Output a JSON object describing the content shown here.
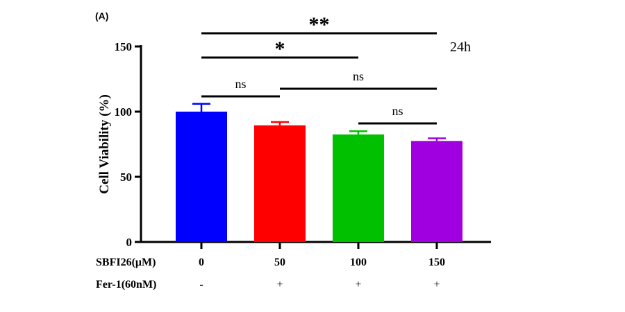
{
  "panel_label": "(A)",
  "annotation": "24h",
  "chart_data": {
    "type": "bar",
    "ylabel": "Cell Viability (%)",
    "ylim": [
      0,
      150
    ],
    "yticks": [
      "0",
      "50",
      "100",
      "150"
    ],
    "row_labels": [
      "SBFI26(μM)",
      "Fer-1(60nM)"
    ],
    "categories": [
      "0",
      "50",
      "100",
      "150"
    ],
    "fer1": [
      "-",
      "+",
      "+",
      "+"
    ],
    "values": [
      100,
      89.5,
      82.5,
      77.5
    ],
    "errors": [
      6,
      2.5,
      2.5,
      2
    ],
    "colors": [
      "#0000ff",
      "#ff0000",
      "#00c000",
      "#a000e0"
    ],
    "significance": [
      {
        "from": 0,
        "to": 3,
        "label": "**"
      },
      {
        "from": 0,
        "to": 2,
        "label": "*"
      },
      {
        "from": 0,
        "to": 1,
        "label": "ns"
      },
      {
        "from": 1,
        "to": 3,
        "label": "ns"
      },
      {
        "from": 2,
        "to": 3,
        "label": "ns"
      }
    ]
  }
}
